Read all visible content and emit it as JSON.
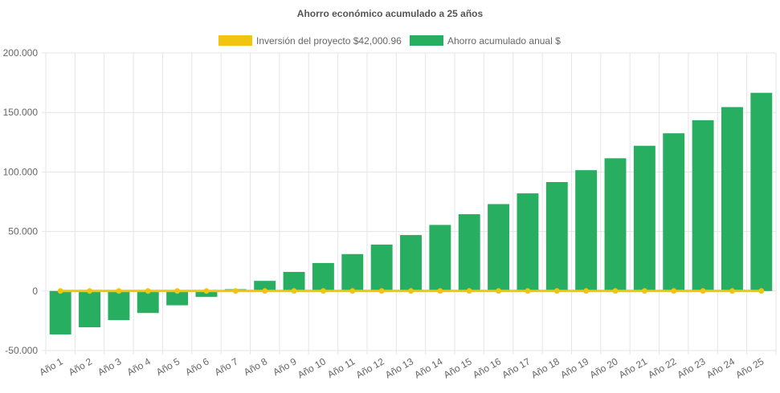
{
  "chart_data": {
    "type": "bar",
    "title": "Ahorro económico acumulado a 25 años",
    "xlabel": "",
    "ylabel": "",
    "ylim": [
      -50000,
      200000
    ],
    "yticks": [
      200000,
      150000,
      100000,
      50000,
      0,
      -50000
    ],
    "ytick_labels": [
      "200.000",
      "150.000",
      "100.000",
      "50.000",
      "0",
      "-50.000"
    ],
    "grid": true,
    "legend_position": "top",
    "categories": [
      "Año 1",
      "Año 2",
      "Año 3",
      "Año 4",
      "Año 5",
      "Año 6",
      "Año 7",
      "Año 8",
      "Año 9",
      "Año 10",
      "Año 11",
      "Año 12",
      "Año 13",
      "Año 14",
      "Año 15",
      "Año 16",
      "Año 17",
      "Año 18",
      "Año 19",
      "Año 20",
      "Año 21",
      "Año 22",
      "Año 23",
      "Año 24",
      "Año 25"
    ],
    "series": [
      {
        "name": "Inversión del proyecto $42,000.96",
        "type": "line",
        "color": "#f1c40f",
        "values": [
          0,
          0,
          0,
          0,
          0,
          0,
          0,
          0,
          0,
          0,
          0,
          0,
          0,
          0,
          0,
          0,
          0,
          0,
          0,
          0,
          0,
          0,
          0,
          0,
          0
        ]
      },
      {
        "name": "Ahorro acumulado anual $",
        "type": "bar",
        "color": "#27ae60",
        "values": [
          -36500,
          -30500,
          -24500,
          -18500,
          -12000,
          -5000,
          1500,
          8500,
          16000,
          23500,
          31000,
          39000,
          47000,
          55500,
          64500,
          73000,
          82000,
          91500,
          101500,
          111500,
          122000,
          132500,
          143500,
          154500,
          166500
        ]
      }
    ]
  }
}
